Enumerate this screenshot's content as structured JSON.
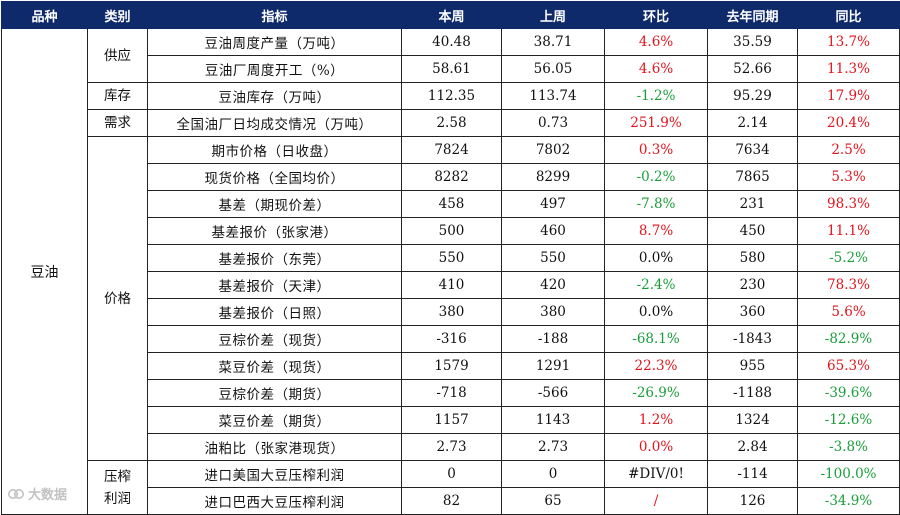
{
  "headers": [
    "品种",
    "类别",
    "指标",
    "本周",
    "上周",
    "环比",
    "去年同期",
    "同比"
  ],
  "variety": "豆油",
  "categories": {
    "supply": "供应",
    "inventory": "库存",
    "demand": "需求",
    "price": "价格",
    "crush": "压榨\n利润"
  },
  "rows": [
    {
      "indicator": "豆油周度产量（万吨）",
      "this_week": "40.48",
      "last_week": "38.71",
      "wow": "4.6%",
      "wow_dir": "pos",
      "last_year": "35.59",
      "yoy": "13.7%",
      "yoy_dir": "pos"
    },
    {
      "indicator": "豆油厂周度开工（%）",
      "this_week": "58.61",
      "last_week": "56.05",
      "wow": "4.6%",
      "wow_dir": "pos",
      "last_year": "52.66",
      "yoy": "11.3%",
      "yoy_dir": "pos"
    },
    {
      "indicator": "豆油库存（万吨）",
      "this_week": "112.35",
      "last_week": "113.74",
      "wow": "-1.2%",
      "wow_dir": "neg",
      "last_year": "95.29",
      "yoy": "17.9%",
      "yoy_dir": "pos"
    },
    {
      "indicator": "全国油厂日均成交情况（万吨）",
      "this_week": "2.58",
      "last_week": "0.73",
      "wow": "251.9%",
      "wow_dir": "pos",
      "last_year": "2.14",
      "yoy": "20.4%",
      "yoy_dir": "pos"
    },
    {
      "indicator": "期市价格（日收盘）",
      "this_week": "7824",
      "last_week": "7802",
      "wow": "0.3%",
      "wow_dir": "pos",
      "last_year": "7634",
      "yoy": "2.5%",
      "yoy_dir": "pos"
    },
    {
      "indicator": "现货价格（全国均价）",
      "this_week": "8282",
      "last_week": "8299",
      "wow": "-0.2%",
      "wow_dir": "neg",
      "last_year": "7865",
      "yoy": "5.3%",
      "yoy_dir": "pos"
    },
    {
      "indicator": "基差（期现价差）",
      "this_week": "458",
      "last_week": "497",
      "wow": "-7.8%",
      "wow_dir": "neg",
      "last_year": "231",
      "yoy": "98.3%",
      "yoy_dir": "pos"
    },
    {
      "indicator": "基差报价（张家港）",
      "this_week": "500",
      "last_week": "460",
      "wow": "8.7%",
      "wow_dir": "pos",
      "last_year": "450",
      "yoy": "11.1%",
      "yoy_dir": "pos"
    },
    {
      "indicator": "基差报价（东莞）",
      "this_week": "550",
      "last_week": "550",
      "wow": "0.0%",
      "wow_dir": "zero",
      "last_year": "580",
      "yoy": "-5.2%",
      "yoy_dir": "neg"
    },
    {
      "indicator": "基差报价（天津）",
      "this_week": "410",
      "last_week": "420",
      "wow": "-2.4%",
      "wow_dir": "neg",
      "last_year": "230",
      "yoy": "78.3%",
      "yoy_dir": "pos"
    },
    {
      "indicator": "基差报价（日照）",
      "this_week": "380",
      "last_week": "380",
      "wow": "0.0%",
      "wow_dir": "zero",
      "last_year": "360",
      "yoy": "5.6%",
      "yoy_dir": "pos"
    },
    {
      "indicator": "豆棕价差（现货）",
      "this_week": "-316",
      "last_week": "-188",
      "wow": "-68.1%",
      "wow_dir": "neg",
      "last_year": "-1843",
      "yoy": "-82.9%",
      "yoy_dir": "neg"
    },
    {
      "indicator": "菜豆价差（现货）",
      "this_week": "1579",
      "last_week": "1291",
      "wow": "22.3%",
      "wow_dir": "pos",
      "last_year": "955",
      "yoy": "65.3%",
      "yoy_dir": "pos"
    },
    {
      "indicator": "豆棕价差（期货）",
      "this_week": "-718",
      "last_week": "-566",
      "wow": "-26.9%",
      "wow_dir": "neg",
      "last_year": "-1188",
      "yoy": "-39.6%",
      "yoy_dir": "neg"
    },
    {
      "indicator": "菜豆价差（期货）",
      "this_week": "1157",
      "last_week": "1143",
      "wow": "1.2%",
      "wow_dir": "pos",
      "last_year": "1324",
      "yoy": "-12.6%",
      "yoy_dir": "neg"
    },
    {
      "indicator": "油粕比（张家港现货）",
      "this_week": "2.73",
      "last_week": "2.73",
      "wow": "0.0%",
      "wow_dir": "pos",
      "last_year": "2.84",
      "yoy": "-3.8%",
      "yoy_dir": "neg"
    },
    {
      "indicator": "进口美国大豆压榨利润",
      "this_week": "0",
      "last_week": "0",
      "wow": "#DIV/0!",
      "wow_dir": "zero",
      "last_year": "-114",
      "yoy": "-100.0%",
      "yoy_dir": "neg"
    },
    {
      "indicator": "进口巴西大豆压榨利润",
      "this_week": "82",
      "last_week": "65",
      "wow": "/",
      "wow_dir": "pos",
      "last_year": "126",
      "yoy": "-34.9%",
      "yoy_dir": "neg"
    }
  ],
  "watermark": "大数据"
}
